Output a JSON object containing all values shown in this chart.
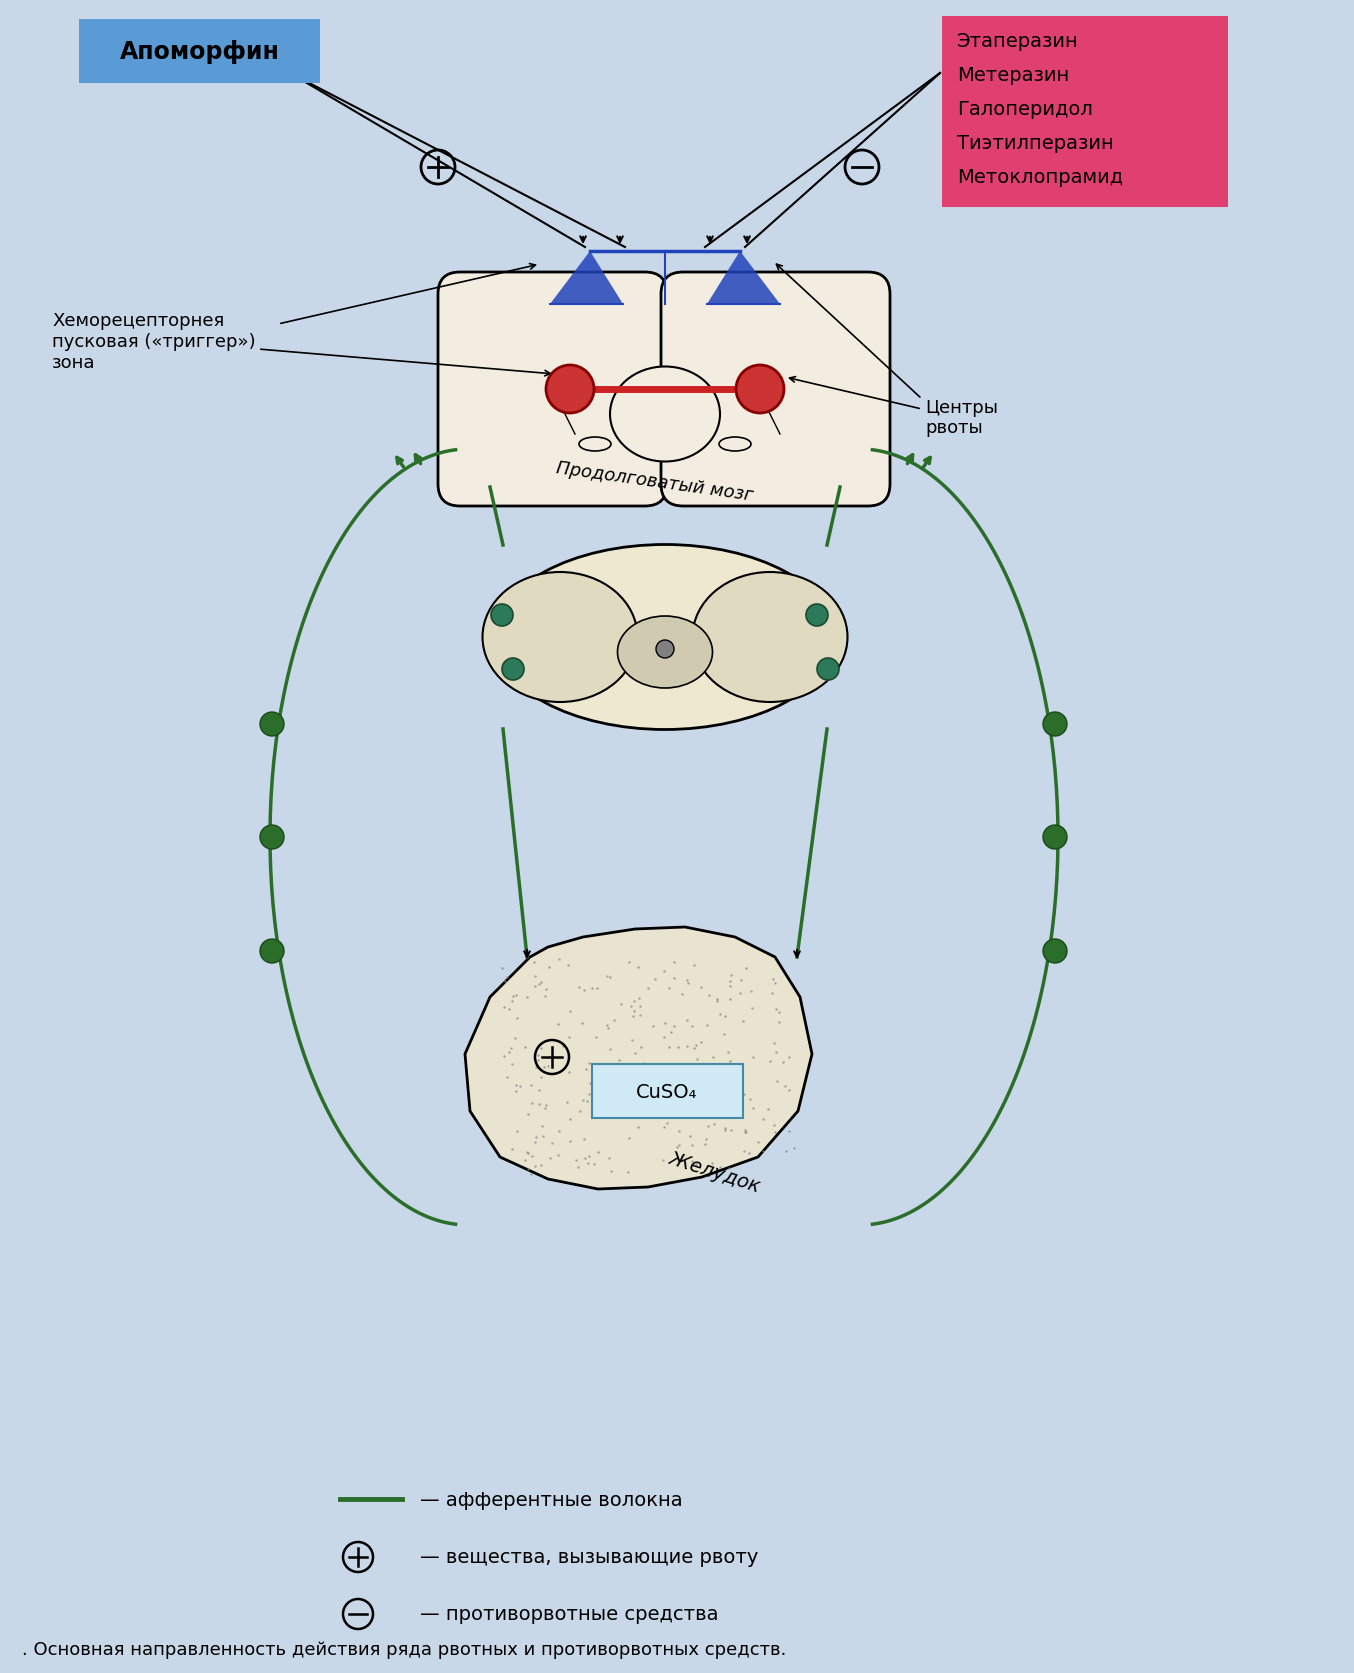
{
  "title": ". Основная направленность действия ряда рвотных и противорвотных средств.",
  "bg_color": "#c8d8e8",
  "apo_box_color": "#5b9bd5",
  "apo_text": "Апоморфин",
  "eta_box_color": "#e04070",
  "eta_lines": [
    "Этаперазин",
    "Метеразин",
    "Галоперидол",
    "Тиэтилперазин",
    "Метоклопрамид"
  ],
  "hemo_label": "Хеморецепторнея\nпусковая («триггер»)\nзона",
  "center_label": "Центры\nрвоты",
  "medulla_label": "Продолговатый мозг",
  "stomach_label": "Желудок",
  "cuso4_label": "CuSO₄",
  "legend_line": "— афферентные волокна",
  "legend_plus": "— вещества, вызывающие рвоту",
  "legend_minus": "— противорвотные средства",
  "caption": ". Основная направленность действия ряда рвотных и противорвотных средств.",
  "green": "#2a6e2a",
  "red": "#cc2222",
  "blue": "#2244bb",
  "pink_dot": "#cc3333",
  "teal_dot": "#2d7a5a",
  "brain_fill": "#f2ede0",
  "cereb_fill": "#eee8d0",
  "stomach_fill": "#e8e4d0"
}
